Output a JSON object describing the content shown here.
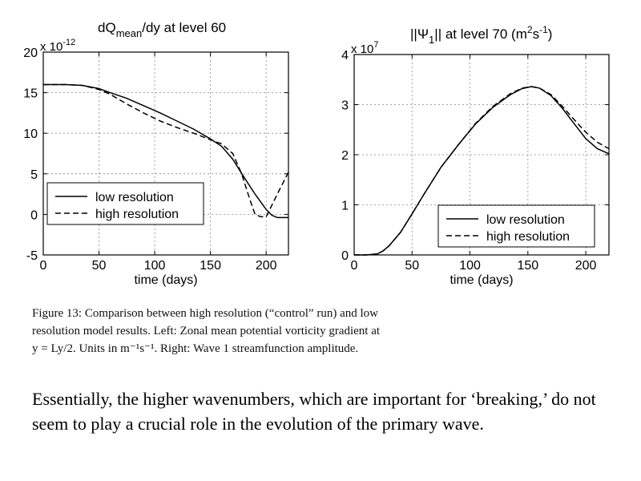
{
  "chart_data": [
    {
      "type": "line",
      "title": "dQ_mean/dy at level 60",
      "title_parts": {
        "pre": "dQ",
        "sub": "mean",
        "post": "/dy at level 60"
      },
      "xlabel": "time (days)",
      "ylabel": "",
      "exponent_label": {
        "base": "x 10",
        "power": "-12"
      },
      "xlim": [
        0,
        220
      ],
      "ylim": [
        -5,
        20
      ],
      "xticks": [
        0,
        50,
        100,
        150,
        200
      ],
      "xticklabels": [
        "0",
        "50",
        "100",
        "150",
        "200"
      ],
      "yticks": [
        -5,
        0,
        5,
        10,
        15,
        20
      ],
      "yticklabels": [
        "-5",
        "0",
        "5",
        "10",
        "15",
        "20"
      ],
      "grid": true,
      "legend": "bottom-left",
      "series": [
        {
          "name": "low resolution",
          "style": "solid",
          "x": [
            0,
            20,
            35,
            50,
            60,
            75,
            90,
            105,
            120,
            135,
            150,
            160,
            170,
            180,
            190,
            200,
            205,
            210,
            215,
            220
          ],
          "y": [
            16,
            16,
            15.9,
            15.5,
            15,
            14.3,
            13.4,
            12.5,
            11.5,
            10.5,
            9.3,
            8.4,
            6.8,
            4.6,
            2.5,
            0.6,
            -0.1,
            -0.4,
            -0.4,
            -0.4
          ]
        },
        {
          "name": "high resolution",
          "style": "dashed",
          "x": [
            0,
            20,
            35,
            50,
            60,
            75,
            90,
            105,
            120,
            135,
            150,
            160,
            170,
            178,
            185,
            190,
            195,
            200,
            210,
            220
          ],
          "y": [
            16,
            16,
            15.9,
            15.4,
            14.8,
            13.6,
            12.5,
            11.5,
            10.7,
            10.0,
            9.2,
            8.7,
            7.5,
            5.0,
            2.0,
            0,
            -0.3,
            -0.3,
            2.5,
            5.2
          ]
        }
      ]
    },
    {
      "type": "line",
      "title": "||Ψ1|| at level 70 (m²s⁻¹)",
      "title_parts": {
        "pre": "||Ψ",
        "sub": "1",
        "mid": "|| at level 70 (m",
        "sup1": "2",
        "mid2": "s",
        "sup2": "-1",
        "post": ")"
      },
      "xlabel": "time (days)",
      "ylabel": "",
      "exponent_label": {
        "base": "x 10",
        "power": "7"
      },
      "xlim": [
        0,
        220
      ],
      "ylim": [
        0,
        4
      ],
      "xticks": [
        0,
        50,
        100,
        150,
        200
      ],
      "xticklabels": [
        "0",
        "50",
        "100",
        "150",
        "200"
      ],
      "yticks": [
        0,
        1,
        2,
        3,
        4
      ],
      "yticklabels": [
        "0",
        "1",
        "2",
        "3",
        "4"
      ],
      "grid": true,
      "legend": "bottom-right",
      "series": [
        {
          "name": "low resolution",
          "style": "solid",
          "x": [
            0,
            10,
            20,
            25,
            30,
            40,
            50,
            60,
            75,
            90,
            105,
            120,
            135,
            145,
            153,
            160,
            170,
            180,
            190,
            200,
            210,
            220
          ],
          "y": [
            0,
            0,
            0.02,
            0.08,
            0.18,
            0.45,
            0.82,
            1.2,
            1.75,
            2.2,
            2.62,
            2.95,
            3.2,
            3.32,
            3.36,
            3.33,
            3.18,
            2.92,
            2.62,
            2.32,
            2.12,
            2.02
          ]
        },
        {
          "name": "high resolution",
          "style": "dashed",
          "x": [
            0,
            10,
            20,
            25,
            30,
            40,
            50,
            60,
            75,
            90,
            105,
            120,
            135,
            145,
            153,
            160,
            170,
            180,
            190,
            200,
            210,
            220
          ],
          "y": [
            0,
            0,
            0.02,
            0.08,
            0.18,
            0.45,
            0.82,
            1.2,
            1.75,
            2.2,
            2.63,
            2.97,
            3.22,
            3.33,
            3.36,
            3.33,
            3.2,
            2.96,
            2.7,
            2.45,
            2.25,
            2.12
          ]
        }
      ]
    }
  ],
  "caption": {
    "lines": [
      "Figure 13: Comparison between high resolution (“control” run) and low",
      "resolution model results. Left: Zonal mean potential vorticity gradient at",
      "y = Ly/2. Units in m⁻¹s⁻¹. Right: Wave 1 streamfunction amplitude."
    ]
  },
  "note": {
    "text": "Essentially, the higher wavenumbers, which are important for ‘breaking,’ do not seem to play a crucial role in the evolution of the primary wave."
  }
}
